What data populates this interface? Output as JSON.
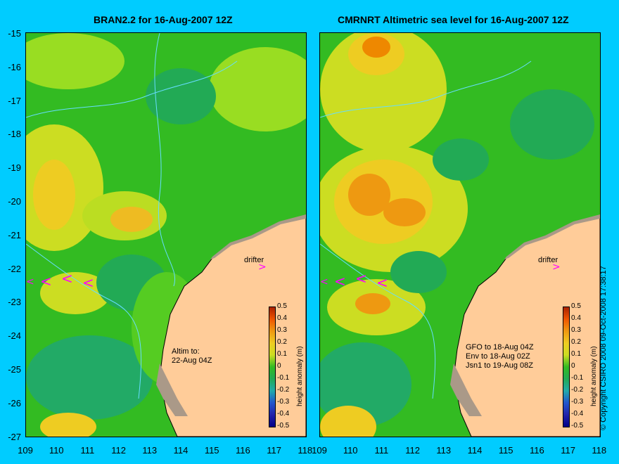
{
  "left_title": "BRAN2.2 for 16-Aug-2007 12Z",
  "right_title": "CMRNRT Altimetric sea level  for 16-Aug-2007 12Z",
  "y_ticks": [
    "-15",
    "-16",
    "-17",
    "-18",
    "-19",
    "-20",
    "-21",
    "-22",
    "-23",
    "-24",
    "-25",
    "-26",
    "-27"
  ],
  "x_ticks": [
    "109",
    "110",
    "111",
    "112",
    "113",
    "114",
    "115",
    "116",
    "117",
    "118"
  ],
  "colorbar": {
    "title": "height anomaly (m)",
    "labels": [
      "0.5",
      "0.4",
      "0.3",
      "0.2",
      "0.1",
      "0",
      "-0.1",
      "-0.2",
      "-0.3",
      "-0.4",
      "-0.5"
    ]
  },
  "left_annotation": "Altim to:\n22-Aug 04Z",
  "right_annotation": "GFO to 18-Aug 04Z\nEnv to 18-Aug 02Z\nJsn1 to 19-Aug 08Z",
  "drifter_label": "drifter",
  "copyright": "© Copyright CSIRO 2008   09-Oct-2008 17:38:17",
  "colors": {
    "background": "#00ccff",
    "land": "#ffcc99",
    "drifter": "#ff00ff",
    "contour": "#66ddff"
  }
}
